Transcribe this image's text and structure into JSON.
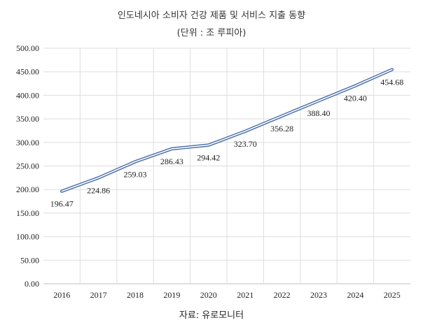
{
  "chart_data": {
    "type": "line",
    "title": "인도네시아 소비자 건강 제품 및 서비스 지출 동향",
    "subtitle": "(단위 : 조 루피아)",
    "source": "자료: 유로모니터",
    "x": [
      "2016",
      "2017",
      "2018",
      "2019",
      "2020",
      "2021",
      "2022",
      "2023",
      "2024",
      "2025"
    ],
    "values": [
      196.47,
      224.86,
      259.03,
      286.43,
      294.42,
      323.7,
      356.28,
      388.4,
      420.4,
      454.68
    ],
    "data_labels": [
      "196.47",
      "224.86",
      "259.03",
      "286.43",
      "294.42",
      "323.70",
      "356.28",
      "388.40",
      "420.40",
      "454.68"
    ],
    "ylim": [
      0,
      500
    ],
    "yticks": [
      "0.00",
      "50.00",
      "100.00",
      "150.00",
      "200.00",
      "250.00",
      "300.00",
      "350.00",
      "400.00",
      "450.00",
      "500.00"
    ],
    "grid": true,
    "legend": "none",
    "colors": {
      "line": "#4a6fa8",
      "grid": "#dddddd",
      "axis": "#bfbfbf"
    }
  }
}
